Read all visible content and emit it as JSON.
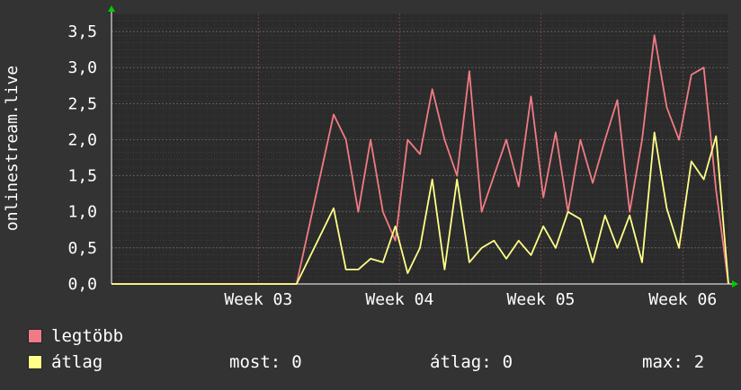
{
  "chart_data": {
    "type": "line",
    "title": "",
    "xlabel": "",
    "ylabel": "onlinestream.live",
    "ylim": [
      0,
      3.75
    ],
    "y_ticks": [
      "0,0",
      "0,5",
      "1,0",
      "1,5",
      "2,0",
      "2,5",
      "3,0",
      "3,5"
    ],
    "x_ticks": [
      "Week 03",
      "Week 04",
      "Week 05",
      "Week 06"
    ],
    "grid": true,
    "legend_placement": "bottom-left",
    "colors": {
      "background": "#333333",
      "plot_bg": "#2b2b2b",
      "grid": "#4a4a4a",
      "legtobb": "#f07b84",
      "atlag": "#ffff88",
      "axis_arrow": "#00cc00"
    },
    "series": [
      {
        "name": "legtöbb",
        "color": "#f07b84",
        "x": [
          0,
          0.3,
          0.36,
          0.38,
          0.4,
          0.42,
          0.44,
          0.46,
          0.48,
          0.5,
          0.52,
          0.54,
          0.56,
          0.58,
          0.6,
          0.62,
          0.64,
          0.66,
          0.68,
          0.7,
          0.72,
          0.74,
          0.76,
          0.78,
          0.8,
          0.82,
          0.84,
          0.86,
          0.88,
          0.9,
          0.92,
          0.94,
          0.96,
          0.98,
          1.0
        ],
        "y": [
          0,
          0,
          2.35,
          2.0,
          1.0,
          2.0,
          1.0,
          0.6,
          2.0,
          1.8,
          2.7,
          2.0,
          1.5,
          2.95,
          1.0,
          1.5,
          2.0,
          1.35,
          2.6,
          1.2,
          2.1,
          1.0,
          2.0,
          1.4,
          2.0,
          2.55,
          1.0,
          2.0,
          3.45,
          2.45,
          2.0,
          2.9,
          3.0,
          1.3,
          0
        ]
      },
      {
        "name": "átlag",
        "color": "#ffff88",
        "x": [
          0,
          0.3,
          0.36,
          0.38,
          0.4,
          0.42,
          0.44,
          0.46,
          0.48,
          0.5,
          0.52,
          0.54,
          0.56,
          0.58,
          0.6,
          0.62,
          0.64,
          0.66,
          0.68,
          0.7,
          0.72,
          0.74,
          0.76,
          0.78,
          0.8,
          0.82,
          0.84,
          0.86,
          0.88,
          0.9,
          0.92,
          0.94,
          0.96,
          0.98,
          1.0
        ],
        "y": [
          0,
          0,
          1.05,
          0.2,
          0.2,
          0.35,
          0.3,
          0.8,
          0.15,
          0.5,
          1.45,
          0.2,
          1.45,
          0.3,
          0.5,
          0.6,
          0.35,
          0.6,
          0.4,
          0.8,
          0.5,
          1.0,
          0.9,
          0.3,
          0.95,
          0.5,
          0.95,
          0.3,
          2.1,
          1.05,
          0.5,
          1.7,
          1.45,
          2.05,
          0
        ]
      }
    ]
  },
  "legend": {
    "items": [
      {
        "label": "legtöbb",
        "color": "#f07b84"
      },
      {
        "label": "átlag",
        "color": "#ffff88"
      }
    ],
    "stats": [
      {
        "label": "most:",
        "value": "0"
      },
      {
        "label": "átlag:",
        "value": "0"
      },
      {
        "label": "max:",
        "value": "2"
      }
    ]
  }
}
